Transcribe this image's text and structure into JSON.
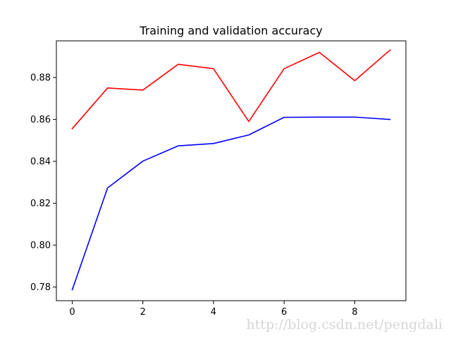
{
  "chart_data": {
    "type": "line",
    "title": "Training and validation accuracy",
    "xlabel": "",
    "ylabel": "",
    "x": [
      0,
      1,
      2,
      3,
      4,
      5,
      6,
      7,
      8,
      9
    ],
    "xlim": [
      -0.45,
      9.45
    ],
    "ylim": [
      0.7735,
      0.8975
    ],
    "xticks": [
      0,
      2,
      4,
      6,
      8
    ],
    "xtick_labels": [
      "0",
      "2",
      "4",
      "6",
      "8"
    ],
    "yticks": [
      0.78,
      0.8,
      0.82,
      0.84,
      0.86,
      0.88
    ],
    "ytick_labels": [
      "0.78",
      "0.80",
      "0.82",
      "0.84",
      "0.86",
      "0.88"
    ],
    "grid": false,
    "legend": "none",
    "series": [
      {
        "color": "#0000ff",
        "values": [
          0.7787,
          0.8273,
          0.8401,
          0.8474,
          0.8485,
          0.8526,
          0.861,
          0.8611,
          0.8611,
          0.86
        ]
      },
      {
        "color": "#ff0000",
        "values": [
          0.8556,
          0.875,
          0.874,
          0.8863,
          0.8842,
          0.859,
          0.8842,
          0.892,
          0.8785,
          0.8931
        ]
      }
    ]
  },
  "watermark": "http://blog.csdn.net/pengdali"
}
